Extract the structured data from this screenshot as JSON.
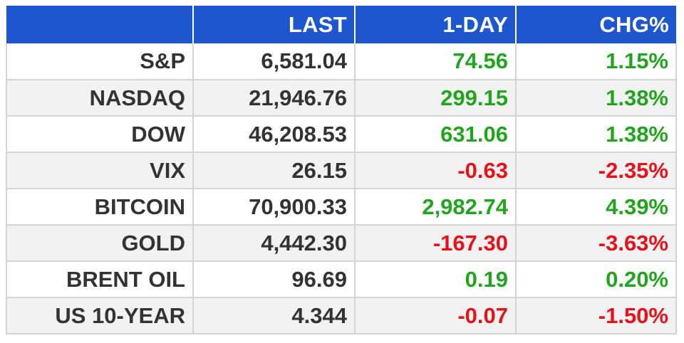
{
  "table": {
    "headers": [
      "",
      "LAST",
      "1-DAY",
      "CHG%"
    ],
    "rows": [
      {
        "name": "S&P",
        "last": "6,581.04",
        "day": "74.56",
        "chg": "1.15%",
        "dir": "pos"
      },
      {
        "name": "NASDAQ",
        "last": "21,946.76",
        "day": "299.15",
        "chg": "1.38%",
        "dir": "pos"
      },
      {
        "name": "DOW",
        "last": "46,208.53",
        "day": "631.06",
        "chg": "1.38%",
        "dir": "pos"
      },
      {
        "name": "VIX",
        "last": "26.15",
        "day": "-0.63",
        "chg": "-2.35%",
        "dir": "neg"
      },
      {
        "name": "BITCOIN",
        "last": "70,900.33",
        "day": "2,982.74",
        "chg": "4.39%",
        "dir": "pos"
      },
      {
        "name": "GOLD",
        "last": "4,442.30",
        "day": "-167.30",
        "chg": "-3.63%",
        "dir": "neg"
      },
      {
        "name": "BRENT OIL",
        "last": "96.69",
        "day": "0.19",
        "chg": "0.20%",
        "dir": "pos"
      },
      {
        "name": "US 10-YEAR",
        "last": "4.344",
        "day": "-0.07",
        "chg": "-1.50%",
        "dir": "neg"
      }
    ]
  },
  "colors": {
    "header_bg": "#1d56cf",
    "positive": "#22a51e",
    "negative": "#e8111a",
    "text": "#333333"
  }
}
